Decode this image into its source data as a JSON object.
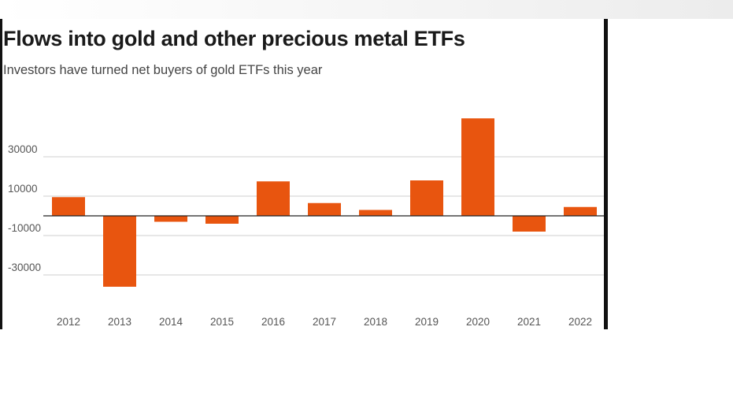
{
  "colors": {
    "bar": "#e8550f",
    "grid": "#cfcfcf",
    "zero_line": "#222222",
    "text": "#1a1a1a",
    "axis_text": "#555555"
  },
  "chart_data": {
    "type": "bar",
    "title": "Flows into gold and other precious metal ETFs",
    "subtitle": "Investors have turned net buyers of gold ETFs this year",
    "xlabel": "",
    "ylabel": "",
    "categories": [
      "2012",
      "2013",
      "2014",
      "2015",
      "2016",
      "2017",
      "2018",
      "2019",
      "2020",
      "2021",
      "2022"
    ],
    "values": [
      9500,
      -36000,
      -3000,
      -4000,
      17500,
      6500,
      3000,
      18000,
      49500,
      -8000,
      4500
    ],
    "y_ticks": [
      30000,
      10000,
      -10000,
      -30000
    ],
    "y_tick_labels": [
      "30000",
      "10000",
      "-10000",
      "-30000"
    ],
    "ylim": [
      -40000,
      50000
    ],
    "grid": true,
    "legend": "none"
  }
}
